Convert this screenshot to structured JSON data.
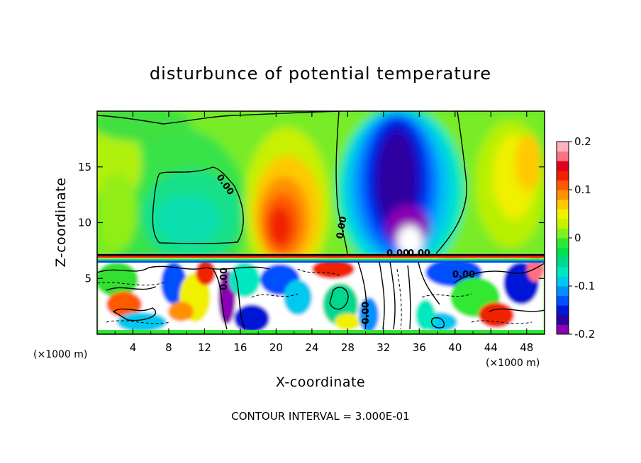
{
  "chart_data": {
    "type": "heatmap",
    "title": "disturbunce of potential temperature",
    "xlabel": "X-coordinate",
    "ylabel": "Z-coordinate",
    "x_unit_left": "(×1000 m)",
    "x_unit_right": "(×1000 m)",
    "footer": "CONTOUR INTERVAL = 3.000E-01",
    "xlim": [
      0,
      50
    ],
    "ylim": [
      0,
      20
    ],
    "x_ticks": [
      4,
      8,
      12,
      16,
      20,
      24,
      28,
      32,
      36,
      40,
      44,
      48
    ],
    "x_tick_labels": [
      "4",
      "8",
      "12",
      "16",
      "20",
      "24",
      "28",
      "32",
      "36",
      "40",
      "44",
      "48"
    ],
    "y_ticks": [
      5,
      10,
      15
    ],
    "y_tick_labels": [
      "5",
      "10",
      "15"
    ],
    "colorbar": {
      "range": [
        -0.2,
        0.2
      ],
      "ticks": [
        -0.2,
        -0.1,
        0,
        0.1,
        0.2
      ],
      "tick_labels": [
        "-0.2",
        "-0.1",
        "0",
        "0.1",
        "0.2"
      ],
      "colors": [
        "#8b00b5",
        "#2d00a0",
        "#0018d6",
        "#0050ff",
        "#0090ff",
        "#00c8f0",
        "#00e8c0",
        "#00d890",
        "#00e050",
        "#30e830",
        "#80f020",
        "#c8f000",
        "#f0f000",
        "#ffc800",
        "#ff9000",
        "#ff5a00",
        "#f02000",
        "#e00020",
        "#ff7080",
        "#ffb0b8"
      ]
    },
    "contour_labels": [
      "0.00",
      "0.00",
      "0.00",
      "0.00",
      "0.00",
      "0.00",
      "0.00"
    ],
    "grid": false
  }
}
